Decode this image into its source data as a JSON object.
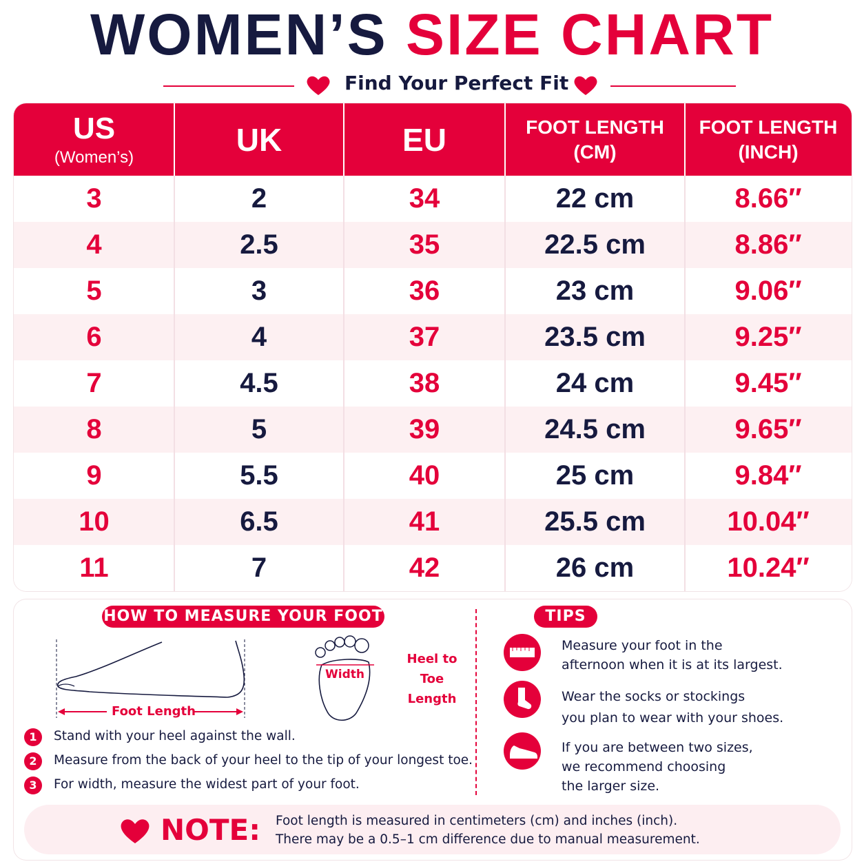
{
  "title": {
    "dark": "WOMEN’S",
    "red": "SIZE CHART"
  },
  "subtitle": "Find Your Perfect Fit",
  "table": {
    "headers": [
      [
        "US",
        "(Women’s)"
      ],
      [
        "UK"
      ],
      [
        "EU"
      ],
      [
        "FOOT LENGTH",
        "(CM)"
      ],
      [
        "FOOT LENGTH",
        "(INCH)"
      ]
    ],
    "rows": [
      [
        "3",
        "2",
        "34",
        "22 cm",
        "8.66″"
      ],
      [
        "4",
        "2.5",
        "35",
        "22.5 cm",
        "8.86″"
      ],
      [
        "5",
        "3",
        "36",
        "23 cm",
        "9.06″"
      ],
      [
        "6",
        "4",
        "37",
        "23.5 cm",
        "9.25″"
      ],
      [
        "7",
        "4.5",
        "38",
        "24 cm",
        "9.45″"
      ],
      [
        "8",
        "5",
        "39",
        "24.5 cm",
        "9.65″"
      ],
      [
        "9",
        "5.5",
        "40",
        "25 cm",
        "9.84″"
      ],
      [
        "10",
        "6.5",
        "41",
        "25.5 cm",
        "10.04″"
      ],
      [
        "11",
        "7",
        "42",
        "26 cm",
        "10.24″"
      ]
    ]
  },
  "measure": {
    "title": "HOW TO MEASURE YOUR FOOT",
    "foot_length_label": "Foot Length",
    "width_label": "Width",
    "heel_to_toe": [
      "Heel to",
      "Toe",
      "Length"
    ],
    "steps": [
      {
        "number": "1",
        "text": "Stand with your heel against the wall."
      },
      {
        "number": "2",
        "text": "Measure from the back of your heel to the tip of your longest toe."
      },
      {
        "number": "3",
        "text": "For width, measure the widest part of your foot."
      }
    ]
  },
  "tips": {
    "title": "TIPS",
    "items": [
      [
        "Measure your foot in the",
        "afternoon when it is at its largest."
      ],
      [
        "Wear the socks or stockings",
        "you plan to wear with your shoes."
      ],
      [
        "If you are between two sizes,",
        "we recommend choosing",
        "the larger size."
      ]
    ]
  },
  "note": {
    "label": "NOTE:",
    "lines": [
      "Foot length is measured in centimeters (cm) and inches (inch).",
      "There may be a 0.5–1 cm difference due to manual measurement."
    ]
  }
}
